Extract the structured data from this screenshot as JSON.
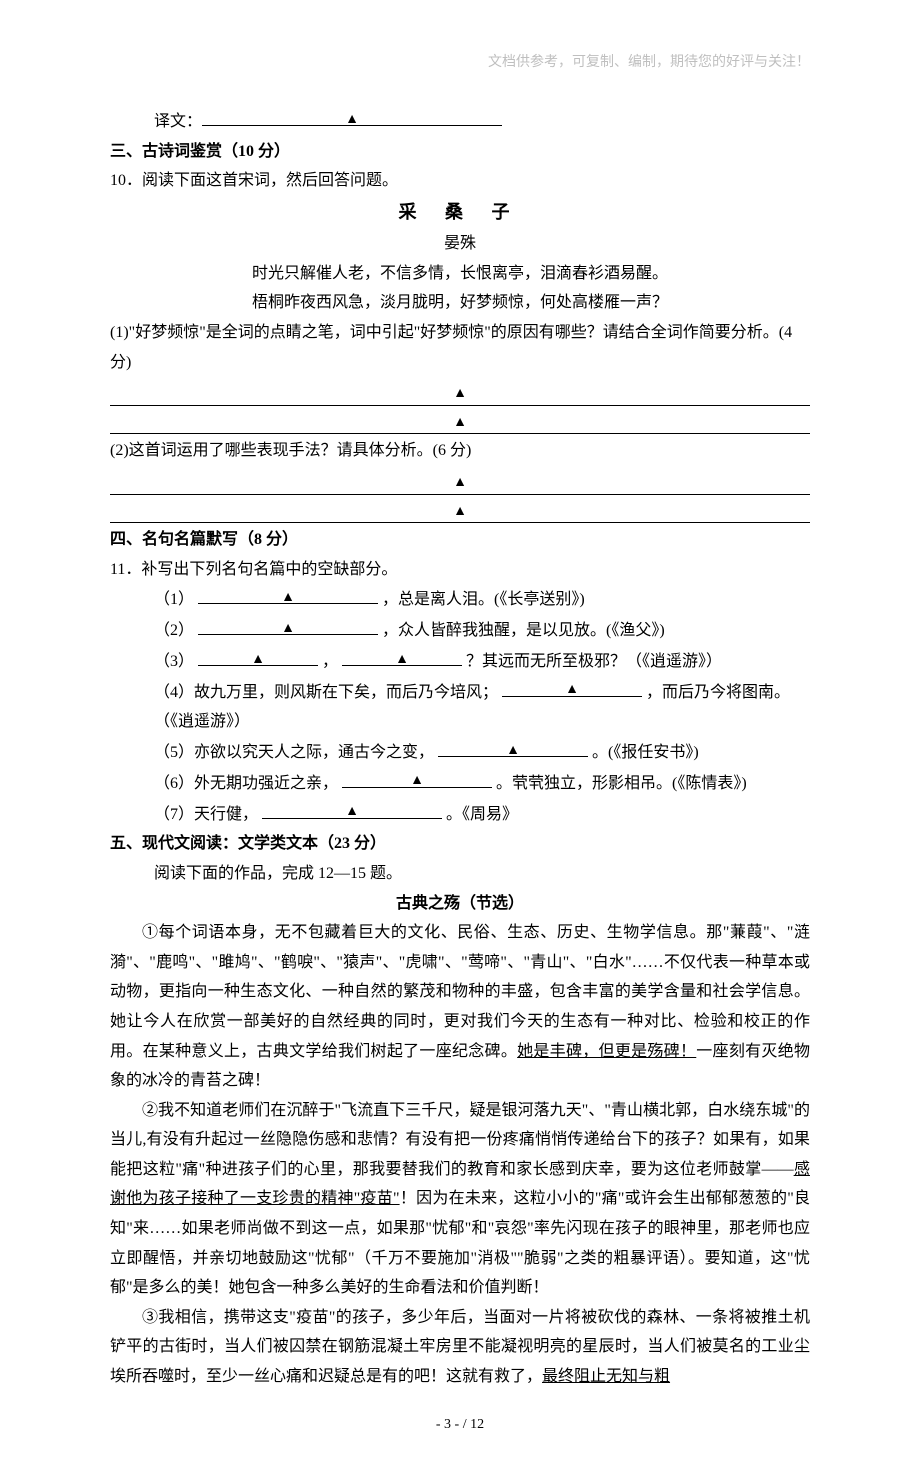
{
  "header_note": "文档供参考，可复制、编制，期待您的好评与关注！",
  "translation_label": "译文：",
  "section3": {
    "title": "三、古诗词鉴赏（10 分）",
    "q10_lead": "10．阅读下面这首宋词，然后回答问题。",
    "poem_title": "采  桑  子",
    "poem_author": "晏殊",
    "poem_l1": "时光只解催人老，不信多情，长恨离亭，泪滴春衫酒易醒。",
    "poem_l2": "梧桐昨夜西风急，淡月胧明，好梦频惊，何处高楼雁一声？",
    "q1": "(1)\"好梦频惊\"是全词的点睛之笔，词中引起\"好梦频惊\"的原因有哪些？请结合全词作简要分析。(4 分)",
    "q2": "(2)这首词运用了哪些表现手法？请具体分析。(6 分)"
  },
  "section4": {
    "title": "四、名句名篇默写（8 分）",
    "q11_lead": "11．补写出下列名句名篇中的空缺部分。",
    "items": [
      {
        "n": "（1）",
        "tail": "，总是离人泪。(《长亭送别》)"
      },
      {
        "n": "（2）",
        "tail": "，众人皆醉我独醒，是以见放。(《渔父》)"
      },
      {
        "n": "（3）",
        "mid": "，",
        "tail": "？其远而无所至极邪？（《逍遥游》）"
      },
      {
        "n": "（4）",
        "pre": "故九万里，则风斯在下矣，而后乃今培风；",
        "tail": "，而后乃今将图南。（《逍遥游》）"
      },
      {
        "n": "（5）",
        "pre": "亦欲以究天人之际，通古今之变，",
        "tail": "。(《报任安书》)"
      },
      {
        "n": "（6）",
        "pre": "外无期功强近之亲，",
        "tail": "。茕茕独立，形影相吊。(《陈情表》)"
      },
      {
        "n": "（7）",
        "pre": "天行健，",
        "tail": "。《周易》"
      }
    ]
  },
  "section5": {
    "title": "五、现代文阅读：文学类文本（23 分）",
    "lead": "阅读下面的作品，完成 12—15 题。",
    "article_title": "古典之殇（节选）",
    "p1a": "①每个词语本身，无不包藏着巨大的文化、民俗、生态、历史、生物学信息。那\"蒹葭\"、\"涟漪\"、\"鹿鸣\"、\"雎鸠\"、\"鹤唳\"、\"猿声\"、\"虎啸\"、\"莺啼\"、\"青山\"、\"白水\"……不仅代表一种草本或动物，更指向一种生态文化、一种自然的繁茂和物种的丰盛，包含丰富的美学含量和社会学信息。她让今人在欣赏一部美好的自然经典的同时，更对我们今天的生态有一种对比、检验和校正的作用。在某种意义上，古典文学给我们树起了一座纪念碑。",
    "p1u": "她是丰碑，但更是殇碑！",
    "p1b": "一座刻有灭绝物象的冰冷的青苔之碑！",
    "p2a": "②我不知道老师们在沉醉于\"飞流直下三千尺，疑是银河落九天\"、\"青山横北郭，白水绕东城\"的当儿,有没有升起过一丝隐隐伤感和悲情？有没有把一份疼痛悄悄传递给台下的孩子？如果有，如果能把这粒\"痛\"种进孩子们的心里，那我要替我们的教育和家长感到庆幸，要为这位老师鼓掌——",
    "p2u": "感谢他为孩子接种了一支珍贵的精神\"疫苗\"",
    "p2b": "！因为在未来，这粒小小的\"痛\"或许会生出郁郁葱葱的\"良知\"来……如果老师尚做不到这一点，如果那\"忧郁\"和\"哀怨\"率先闪现在孩子的眼神里，那老师也应立即醒悟，并亲切地鼓励这\"忧郁\"（千万不要施加\"消极\"\"脆弱\"之类的粗暴评语）。要知道，这\"忧郁\"是多么的美！她包含一种多么美好的生命看法和价值判断！",
    "p3a": "③我相信，携带这支\"疫苗\"的孩子，多少年后，当面对一片将被砍伐的森林、一条将被推土机铲平的古街时，当人们被囚禁在钢筋混凝土牢房里不能凝视明亮的星辰时，当人们被莫名的工业尘埃所吞噬时，至少一丝心痛和迟疑总是有的吧！这就有救了，",
    "p3u": "最终阻止无知与粗"
  },
  "footer": "- 3 -  / 12"
}
